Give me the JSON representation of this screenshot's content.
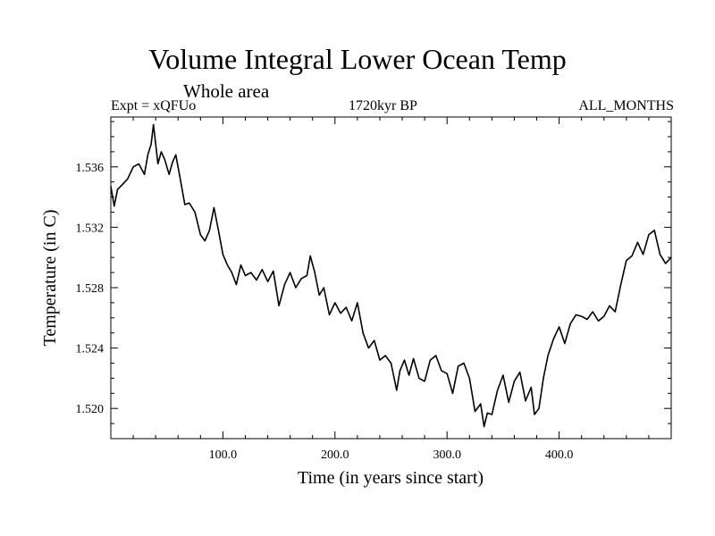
{
  "chart_data": {
    "type": "line",
    "title": "Volume Integral Lower Ocean Temp",
    "subtitle": "Whole area",
    "experiment_label": "Expt = xQFUo",
    "period_label": "1720kyr BP",
    "months_label": "ALL_MONTHS",
    "xlabel": "Time (in years since start)",
    "ylabel": "Temperature (in C)",
    "xlim": [
      0,
      500
    ],
    "ylim": [
      1.518,
      1.5393
    ],
    "x_ticks": [
      100,
      200,
      300,
      400
    ],
    "x_tick_labels": [
      "100.0",
      "200.0",
      "300.0",
      "400.0"
    ],
    "y_ticks": [
      1.52,
      1.524,
      1.528,
      1.532,
      1.536
    ],
    "y_tick_labels": [
      "1.520",
      "1.524",
      "1.528",
      "1.532",
      "1.536"
    ],
    "grid": false,
    "series": [
      {
        "name": "Lower Ocean Temp",
        "color": "#000000",
        "x": [
          0,
          3,
          6,
          10,
          15,
          20,
          25,
          30,
          33,
          36,
          38,
          40,
          42,
          45,
          48,
          52,
          55,
          58,
          62,
          66,
          70,
          75,
          80,
          84,
          88,
          92,
          96,
          100,
          104,
          108,
          112,
          116,
          120,
          125,
          130,
          135,
          140,
          145,
          150,
          155,
          160,
          165,
          170,
          175,
          178,
          182,
          186,
          190,
          195,
          200,
          205,
          210,
          215,
          220,
          225,
          230,
          235,
          240,
          245,
          250,
          255,
          258,
          262,
          266,
          270,
          275,
          280,
          285,
          290,
          295,
          300,
          305,
          310,
          315,
          320,
          325,
          330,
          333,
          336,
          340,
          345,
          350,
          355,
          360,
          365,
          370,
          375,
          378,
          382,
          386,
          390,
          395,
          400,
          405,
          410,
          415,
          420,
          425,
          430,
          435,
          440,
          445,
          450,
          455,
          460,
          465,
          470,
          475,
          480,
          485,
          490,
          495,
          500
        ],
        "values": [
          1.5347,
          1.5334,
          1.5345,
          1.5348,
          1.5352,
          1.536,
          1.5362,
          1.5355,
          1.5368,
          1.5375,
          1.5388,
          1.5375,
          1.5362,
          1.537,
          1.5365,
          1.5355,
          1.5363,
          1.5368,
          1.5352,
          1.5335,
          1.5336,
          1.533,
          1.5315,
          1.5311,
          1.5318,
          1.5333,
          1.5318,
          1.5302,
          1.5295,
          1.529,
          1.5282,
          1.5295,
          1.5288,
          1.529,
          1.5285,
          1.5292,
          1.5284,
          1.5291,
          1.5268,
          1.5282,
          1.529,
          1.528,
          1.5286,
          1.5288,
          1.5301,
          1.529,
          1.5275,
          1.528,
          1.5262,
          1.527,
          1.5263,
          1.5267,
          1.5258,
          1.527,
          1.525,
          1.524,
          1.5245,
          1.5232,
          1.5235,
          1.523,
          1.5212,
          1.5225,
          1.5232,
          1.5222,
          1.5233,
          1.522,
          1.5218,
          1.5232,
          1.5235,
          1.5225,
          1.5223,
          1.521,
          1.5228,
          1.523,
          1.522,
          1.5198,
          1.5203,
          1.5188,
          1.5197,
          1.5196,
          1.5212,
          1.5222,
          1.5204,
          1.5218,
          1.5224,
          1.5205,
          1.5214,
          1.5196,
          1.52,
          1.522,
          1.5235,
          1.5246,
          1.5254,
          1.5243,
          1.5256,
          1.5262,
          1.5261,
          1.5259,
          1.5264,
          1.5258,
          1.5261,
          1.5268,
          1.5264,
          1.5282,
          1.5298,
          1.5301,
          1.531,
          1.5302,
          1.5315,
          1.5318,
          1.5302,
          1.5296,
          1.53
        ]
      }
    ]
  }
}
